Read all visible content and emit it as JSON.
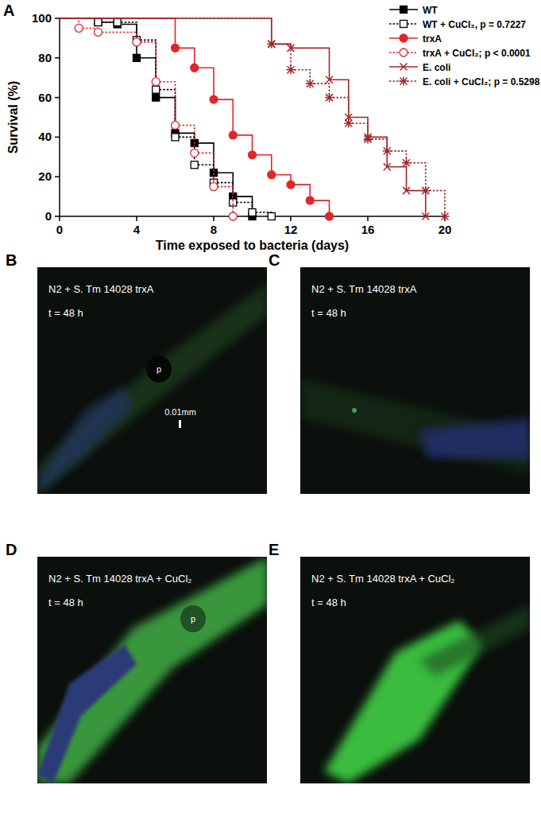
{
  "chart_data": {
    "type": "line",
    "panel_label": "A",
    "x_label": "Time exposed to bacteria (days)",
    "y_label": "Survival (%)",
    "xlim": [
      0,
      20
    ],
    "xticks": [
      0,
      4,
      8,
      12,
      16,
      20
    ],
    "ylim": [
      0,
      100
    ],
    "yticks": [
      0,
      20,
      40,
      60,
      80,
      100
    ],
    "legend": "right",
    "series": [
      {
        "name": "WT",
        "color": "#000000",
        "marker": "square",
        "line_style": "solid",
        "x": [
          0,
          2,
          3,
          4,
          5,
          6,
          7,
          8,
          9,
          10
        ],
        "values": [
          100,
          98,
          97,
          80,
          60,
          42,
          37,
          22,
          10,
          0
        ]
      },
      {
        "name": "WT + CuCl₂, p = 0.7227",
        "color": "#000000",
        "marker": "square-open",
        "line_style": "dotted",
        "x": [
          0,
          2,
          3,
          4,
          5,
          6,
          7,
          8,
          9,
          10,
          11
        ],
        "values": [
          100,
          98,
          98,
          89,
          64,
          40,
          26,
          17,
          7,
          2,
          0
        ]
      },
      {
        "name": "trxA",
        "color": "#e3242b",
        "marker": "circle",
        "line_style": "solid",
        "x": [
          0,
          6,
          7,
          8,
          9,
          10,
          11,
          12,
          13,
          14
        ],
        "values": [
          100,
          85,
          75,
          59,
          41,
          31,
          21,
          16,
          8,
          0
        ]
      },
      {
        "name": "trxA + CuCl₂; p < 0.0001",
        "color": "#e3242b",
        "marker": "circle-open",
        "line_style": "dotted",
        "x": [
          0,
          1,
          2,
          4,
          5,
          6,
          7,
          8,
          9
        ],
        "values": [
          100,
          95,
          93,
          88,
          68,
          46,
          32,
          15,
          0
        ]
      },
      {
        "name": "E. coli",
        "color": "#a3262a",
        "marker": "x",
        "line_style": "solid",
        "x": [
          0,
          11,
          12,
          14,
          15,
          16,
          17,
          18,
          19
        ],
        "values": [
          100,
          87,
          85,
          69,
          50,
          40,
          25,
          13,
          0
        ]
      },
      {
        "name": "E. coli + CuCl₂; p = 0.5298",
        "color": "#a3262a",
        "marker": "asterisk",
        "line_style": "dotted",
        "x": [
          0,
          11,
          12,
          13,
          14,
          15,
          16,
          17,
          18,
          19,
          20
        ],
        "values": [
          100,
          87,
          74,
          67,
          60,
          47,
          39,
          33,
          27,
          13,
          0
        ]
      }
    ]
  },
  "panels": [
    {
      "label": "B",
      "caption": "N2 + S. Tm 14028 trxA",
      "time": "t = 48 h",
      "pharynx": "p",
      "scale_bar": "0.01mm"
    },
    {
      "label": "C",
      "caption": "N2 + S. Tm 14028 trxA",
      "time": "t = 48 h"
    },
    {
      "label": "D",
      "caption": "N2 + S. Tm 14028 trxA + CuCl₂",
      "time": "t = 48 h",
      "pharynx": "p"
    },
    {
      "label": "E",
      "caption": "N2 + S. Tm 14028 trxA + CuCl₂",
      "time": "t = 48 h"
    }
  ]
}
